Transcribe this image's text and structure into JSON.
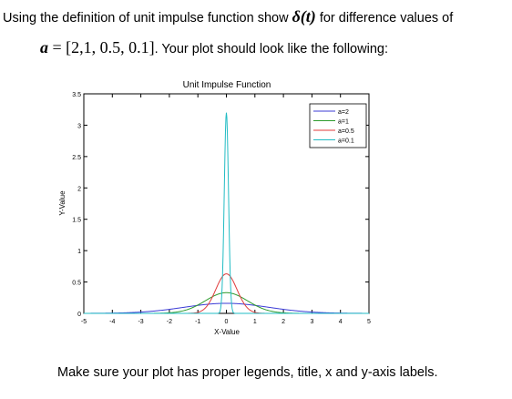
{
  "prompt": {
    "line1_text": "Using the definition of unit impulse function show ",
    "line1_symbol": "δ(t)",
    "line1_end": " for difference values of",
    "line2_var": "a",
    "line2_eq": " = [2,1, 0.5, 0.1]",
    "line2_text": ". Your plot should look like the following:"
  },
  "footer": "Make sure your plot has proper legends, title, x and y-axis labels.",
  "chart_data": {
    "type": "line",
    "title": "Unit Impulse Function",
    "xlabel": "X-Value",
    "ylabel": "Y-Value",
    "xlim": [
      -5,
      5
    ],
    "ylim": [
      0,
      3.5
    ],
    "xticks": [
      "-5",
      "-4",
      "-3",
      "-2",
      "-1",
      "0",
      "1",
      "2",
      "3",
      "4",
      "5"
    ],
    "yticks": [
      "0",
      "0.5",
      "1",
      "1.5",
      "2",
      "2.5",
      "3",
      "3.5"
    ],
    "legend_position": "top-right",
    "series": [
      {
        "name": "a=2",
        "a": 2,
        "color": "#3b3bd6",
        "peak": 0.16
      },
      {
        "name": "a=1",
        "a": 1,
        "color": "#2e9b2e",
        "peak": 0.33
      },
      {
        "name": "a=0.5",
        "a": 0.5,
        "color": "#e03b3b",
        "peak": 0.63
      },
      {
        "name": "a=0.1",
        "a": 0.1,
        "color": "#22bcc4",
        "peak": 3.2
      }
    ]
  }
}
